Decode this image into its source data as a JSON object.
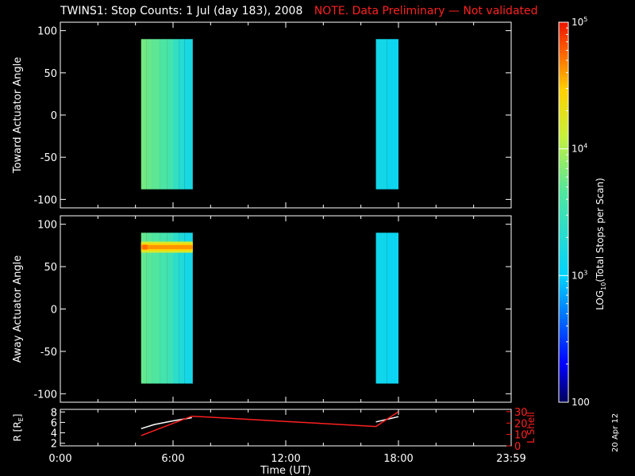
{
  "header": {
    "title": "TWINS1: Stop Counts:  1 Jul (day 183), 2008",
    "note": "NOTE. Data Preliminary — Not validated"
  },
  "footer": {
    "datestamp": "20 Apr 12"
  },
  "colors": {
    "background": "#000000",
    "axes": "#ffffff",
    "note": "#ff2020",
    "r_line": "#ffffff",
    "lshell_line": "#ff2020"
  },
  "chart_data": [
    {
      "type": "heatmap",
      "name": "toward",
      "ylabel": "Toward Actuator Angle",
      "ylim": [
        -110,
        110
      ],
      "yticks": [
        100,
        50,
        0,
        -50,
        -100
      ],
      "xlim": [
        0,
        24
      ],
      "angle_range": [
        -88,
        90
      ],
      "segments": [
        {
          "start_hr": 4.3,
          "end_hr": 7.05,
          "stripes": [
            {
              "t0": 4.3,
              "t1": 4.6,
              "log": 3.78
            },
            {
              "t0": 4.6,
              "t1": 4.9,
              "log": 3.74
            },
            {
              "t0": 4.9,
              "t1": 5.3,
              "log": 3.7
            },
            {
              "t0": 5.3,
              "t1": 5.7,
              "log": 3.62
            },
            {
              "t0": 5.7,
              "t1": 6.0,
              "log": 3.56
            },
            {
              "t0": 6.0,
              "t1": 6.3,
              "log": 3.42
            },
            {
              "t0": 6.3,
              "t1": 6.6,
              "log": 3.3
            },
            {
              "t0": 6.6,
              "t1": 7.05,
              "log": 3.2
            }
          ]
        },
        {
          "start_hr": 16.8,
          "end_hr": 18.0,
          "stripes": [
            {
              "t0": 16.8,
              "t1": 17.4,
              "log": 3.15
            },
            {
              "t0": 17.4,
              "t1": 18.0,
              "log": 3.1
            }
          ]
        }
      ]
    },
    {
      "type": "heatmap",
      "name": "away",
      "ylabel": "Away Actuator Angle",
      "ylim": [
        -110,
        110
      ],
      "yticks": [
        100,
        50,
        0,
        -50,
        -100
      ],
      "xlim": [
        0,
        24
      ],
      "angle_range": [
        -88,
        90
      ],
      "segments": [
        {
          "start_hr": 4.3,
          "end_hr": 7.05,
          "stripes": [
            {
              "t0": 4.3,
              "t1": 4.6,
              "log": 3.72
            },
            {
              "t0": 4.6,
              "t1": 4.9,
              "log": 3.68
            },
            {
              "t0": 4.9,
              "t1": 5.3,
              "log": 3.64
            },
            {
              "t0": 5.3,
              "t1": 5.7,
              "log": 3.56
            },
            {
              "t0": 5.7,
              "t1": 6.0,
              "log": 3.5
            },
            {
              "t0": 6.0,
              "t1": 6.3,
              "log": 3.36
            },
            {
              "t0": 6.3,
              "t1": 6.6,
              "log": 3.26
            },
            {
              "t0": 6.6,
              "t1": 7.05,
              "log": 3.16
            }
          ],
          "hotspot": {
            "t0": 4.3,
            "t1": 7.05,
            "angle": 73,
            "peak_log": 4.75
          }
        },
        {
          "start_hr": 16.8,
          "end_hr": 18.0,
          "stripes": [
            {
              "t0": 16.8,
              "t1": 17.4,
              "log": 3.12
            },
            {
              "t0": 17.4,
              "t1": 18.0,
              "log": 3.08
            }
          ]
        }
      ]
    },
    {
      "type": "line",
      "name": "orbit",
      "ylabel_left": "R [R",
      "ylabel_left_sub": "E",
      "ylabel_left_close": "]",
      "ylabel_right": "L Shell",
      "xlabel": "Time (UT)",
      "xticklabels": [
        "0:00",
        "6:00",
        "12:00",
        "18:00",
        "23:59"
      ],
      "xtick_hours": [
        0,
        6,
        12,
        18,
        24
      ],
      "xlim": [
        0,
        24
      ],
      "ylim_left": [
        1.5,
        8.5
      ],
      "yticks_left": [
        8,
        6,
        4,
        2
      ],
      "ylim_right": [
        0,
        32
      ],
      "yticks_right": [
        30,
        20,
        10,
        0
      ],
      "series": [
        {
          "axis": "left",
          "color": "#ffffff",
          "x": [
            4.3,
            5.0,
            6.0,
            7.0
          ],
          "y": [
            4.8,
            5.6,
            6.3,
            6.9
          ]
        },
        {
          "axis": "left",
          "color": "#ffffff",
          "x": [
            16.8,
            17.4,
            18.0
          ],
          "y": [
            6.1,
            6.6,
            7.1
          ]
        },
        {
          "axis": "right",
          "color": "#ff2020",
          "x": [
            4.3,
            7.0,
            16.8,
            18.0
          ],
          "y": [
            9,
            26,
            17,
            30
          ]
        }
      ]
    }
  ],
  "colorbar": {
    "label": "LOG",
    "label_sub": "10",
    "label_rest": "(Total Stops per Scan)",
    "log_min": 2,
    "log_max": 5,
    "ticks": [
      {
        "log": 5,
        "base": "10",
        "exp": "5"
      },
      {
        "log": 4,
        "base": "10",
        "exp": "4"
      },
      {
        "log": 3,
        "base": "10",
        "exp": "3"
      },
      {
        "log": 2,
        "base": "100",
        "exp": ""
      }
    ]
  }
}
